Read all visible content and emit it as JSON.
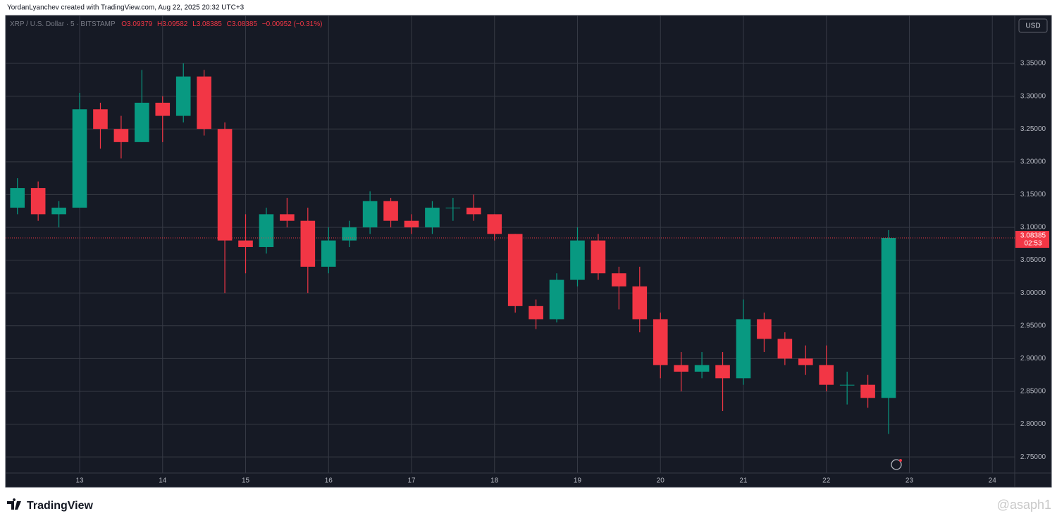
{
  "header": {
    "credit": "YordanLyanchev created with TradingView.com, Aug 22, 2025 20:32 UTC+3"
  },
  "legend": {
    "symbol": "XRP / U.S. Dollar · 5 · BITSTAMP",
    "open": "O3.09379",
    "high": "H3.09582",
    "low": "L3.08385",
    "close": "C3.08385",
    "change": "−0.00952 (−0.31%)"
  },
  "currency": "USD",
  "countdown": "02:53",
  "footer": {
    "brand": "TradingView",
    "watermark": "@asaph1"
  },
  "chart_data": {
    "type": "candlestick",
    "up_color": "#089981",
    "down_color": "#f23645",
    "x": [
      12.25,
      12.5,
      12.75,
      13,
      13.25,
      13.5,
      13.75,
      14,
      14.25,
      14.5,
      14.75,
      15,
      15.25,
      15.5,
      15.75,
      16,
      16.25,
      16.5,
      16.75,
      17,
      17.25,
      17.5,
      17.75,
      18,
      18.25,
      18.5,
      18.75,
      19,
      19.25,
      19.5,
      19.75,
      20,
      20.25,
      20.5,
      20.75,
      21,
      21.25,
      21.5,
      21.75,
      22,
      22.25,
      22.5,
      22.75
    ],
    "open": [
      3.13,
      3.16,
      3.12,
      3.13,
      3.28,
      3.25,
      3.23,
      3.29,
      3.27,
      3.33,
      3.25,
      3.08,
      3.07,
      3.12,
      3.11,
      3.04,
      3.08,
      3.1,
      3.14,
      3.11,
      3.1,
      3.13,
      3.13,
      3.12,
      3.09,
      2.98,
      2.96,
      3.02,
      3.08,
      3.03,
      3.01,
      2.96,
      2.89,
      2.88,
      2.89,
      2.87,
      2.96,
      2.93,
      2.9,
      2.89,
      2.86,
      2.86,
      2.84
    ],
    "high": [
      3.175,
      3.17,
      3.14,
      3.305,
      3.29,
      3.27,
      3.34,
      3.3,
      3.35,
      3.34,
      3.26,
      3.12,
      3.13,
      3.145,
      3.13,
      3.1,
      3.11,
      3.155,
      3.145,
      3.12,
      3.14,
      3.145,
      3.15,
      3.12,
      3.09,
      2.99,
      3.03,
      3.1,
      3.09,
      3.04,
      3.04,
      2.97,
      2.91,
      2.91,
      2.91,
      2.99,
      2.97,
      2.94,
      2.92,
      2.92,
      2.88,
      2.875,
      3.09582
    ],
    "low": [
      3.12,
      3.11,
      3.1,
      3.13,
      3.22,
      3.205,
      3.23,
      3.23,
      3.26,
      3.24,
      3.0,
      3.03,
      3.06,
      3.1,
      3.0,
      3.03,
      3.07,
      3.09,
      3.1,
      3.09,
      3.09,
      3.11,
      3.11,
      3.08,
      2.97,
      2.945,
      2.955,
      3.01,
      3.02,
      2.975,
      2.94,
      2.87,
      2.85,
      2.87,
      2.82,
      2.86,
      2.91,
      2.89,
      2.875,
      2.85,
      2.83,
      2.825,
      2.785
    ],
    "close": [
      3.16,
      3.12,
      3.13,
      3.28,
      3.25,
      3.23,
      3.29,
      3.27,
      3.33,
      3.25,
      3.08,
      3.07,
      3.12,
      3.11,
      3.04,
      3.08,
      3.1,
      3.14,
      3.11,
      3.1,
      3.13,
      3.13,
      3.12,
      3.09,
      2.98,
      2.96,
      3.02,
      3.08,
      3.03,
      3.01,
      2.96,
      2.89,
      2.88,
      2.89,
      2.87,
      2.96,
      2.93,
      2.9,
      2.89,
      2.86,
      2.86,
      2.84,
      3.08385
    ],
    "last_price": 3.08385,
    "xlim": [
      12.108,
      24.27
    ],
    "xticks": [
      13,
      14,
      15,
      16,
      17,
      18,
      19,
      20,
      21,
      22,
      23,
      24
    ],
    "ylim": [
      2.7255,
      3.423
    ],
    "yticks": [
      {
        "value": 2.75,
        "label": "2.75000"
      },
      {
        "value": 2.8,
        "label": "2.80000"
      },
      {
        "value": 2.85,
        "label": "2.85000"
      },
      {
        "value": 2.9,
        "label": "2.90000"
      },
      {
        "value": 2.95,
        "label": "2.95000"
      },
      {
        "value": 3,
        "label": "3.00000"
      },
      {
        "value": 3.05,
        "label": "3.05000"
      },
      {
        "value": 3.1,
        "label": "3.10000"
      },
      {
        "value": 3.15,
        "label": "3.15000"
      },
      {
        "value": 3.2,
        "label": "3.20000"
      },
      {
        "value": 3.25,
        "label": "3.25000"
      },
      {
        "value": 3.3,
        "label": "3.30000"
      },
      {
        "value": 3.35,
        "label": "3.35000"
      }
    ],
    "grid": true
  }
}
